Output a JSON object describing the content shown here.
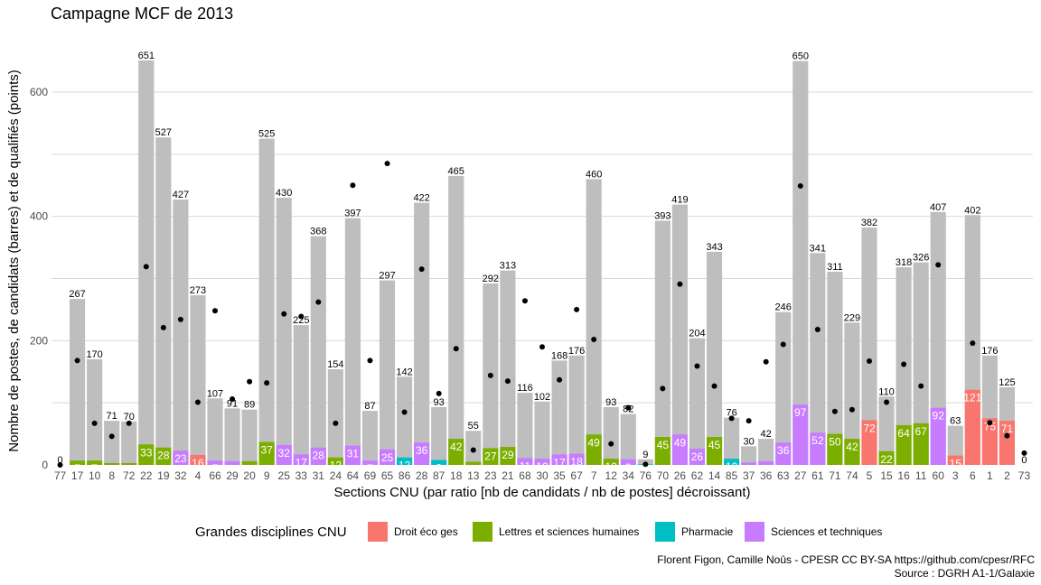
{
  "chart_data": {
    "type": "bar",
    "title": "Campagne MCF de 2013",
    "xlabel": "Sections CNU (par ratio [nb de candidats / nb de postes] décroissant)",
    "ylabel": "Nombre de postes, de candidats (barres) et de qualifiés (points)",
    "ylim": [
      0,
      680
    ],
    "yticks": [
      0,
      200,
      400,
      600
    ],
    "grid": true,
    "legend_title": "Grandes disciplines CNU",
    "legend_position": "bottom",
    "groups": [
      {
        "name": "Droit éco ges",
        "color": "#F8766D"
      },
      {
        "name": "Lettres et sciences humaines",
        "color": "#7CAE00"
      },
      {
        "name": "Pharmacie",
        "color": "#00BFC4"
      },
      {
        "name": "Sciences et techniques",
        "color": "#C77CFF"
      }
    ],
    "candidates_color": "#BEBEBE",
    "qualified_color": "#000000",
    "categories": [
      "77",
      "17",
      "10",
      "8",
      "72",
      "22",
      "19",
      "32",
      "4",
      "66",
      "29",
      "20",
      "9",
      "25",
      "33",
      "31",
      "24",
      "64",
      "69",
      "65",
      "86",
      "28",
      "87",
      "18",
      "13",
      "23",
      "21",
      "68",
      "30",
      "35",
      "67",
      "7",
      "12",
      "34",
      "76",
      "70",
      "26",
      "62",
      "14",
      "85",
      "37",
      "36",
      "63",
      "27",
      "61",
      "71",
      "74",
      "5",
      "15",
      "16",
      "11",
      "60",
      "3",
      "6",
      "1",
      "2",
      "73"
    ],
    "candidates": [
      0,
      267,
      170,
      71,
      70,
      651,
      527,
      427,
      273,
      107,
      91,
      89,
      525,
      430,
      225,
      368,
      154,
      397,
      87,
      297,
      142,
      422,
      93,
      465,
      55,
      292,
      313,
      116,
      102,
      168,
      176,
      460,
      93,
      82,
      9,
      393,
      419,
      204,
      343,
      76,
      30,
      42,
      246,
      650,
      341,
      311,
      229,
      382,
      110,
      318,
      326,
      407,
      63,
      402,
      176,
      125,
      0
    ],
    "posts": [
      0,
      7,
      7,
      3,
      3,
      33,
      28,
      23,
      16,
      7,
      6,
      6,
      37,
      32,
      17,
      28,
      12,
      31,
      7,
      25,
      12,
      36,
      8,
      42,
      5,
      27,
      29,
      11,
      10,
      17,
      18,
      49,
      10,
      9,
      1,
      45,
      49,
      26,
      45,
      10,
      4,
      6,
      36,
      97,
      52,
      50,
      42,
      72,
      22,
      64,
      67,
      92,
      15,
      121,
      75,
      71,
      0
    ],
    "qualified": [
      0,
      168,
      67,
      46,
      67,
      319,
      221,
      234,
      101,
      248,
      106,
      134,
      132,
      243,
      239,
      262,
      67,
      450,
      168,
      485,
      85,
      315,
      115,
      187,
      24,
      144,
      135,
      264,
      190,
      137,
      250,
      202,
      34,
      92,
      1,
      123,
      291,
      159,
      127,
      75,
      71,
      166,
      194,
      449,
      218,
      86,
      89,
      167,
      101,
      162,
      127,
      322,
      null,
      196,
      68,
      47,
      19
    ],
    "discipline": [
      1,
      1,
      1,
      1,
      1,
      1,
      1,
      3,
      0,
      3,
      3,
      1,
      1,
      3,
      3,
      3,
      1,
      3,
      3,
      3,
      2,
      3,
      2,
      1,
      1,
      1,
      1,
      3,
      3,
      3,
      3,
      1,
      1,
      3,
      2,
      1,
      3,
      3,
      1,
      2,
      3,
      3,
      3,
      3,
      3,
      1,
      1,
      0,
      1,
      1,
      1,
      3,
      0,
      0,
      0,
      0,
      1
    ]
  },
  "caption": {
    "line1": "Florent Figon, Camille Noûs - CPESR CC BY-SA https://github.com/cpesr/RFC",
    "line2": "Source : DGRH A1-1/Galaxie"
  }
}
